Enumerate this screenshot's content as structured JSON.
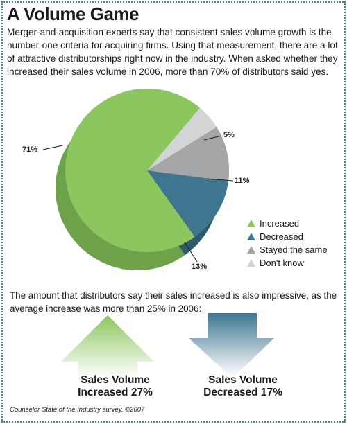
{
  "header": {
    "title": "A Volume Game",
    "intro": "Merger-and-acquisition experts say that consistent sales volume growth is the number-one criteria for acquiring firms. Using that measurement, there are a lot of attractive distributorships right now in the industry. When asked whether they increased their sales volume in 2006, more than 70% of distributors said yes."
  },
  "chart_data": {
    "type": "pie",
    "categories": [
      "Increased",
      "Decreased",
      "Stayed the same",
      "Don't know"
    ],
    "values": [
      71,
      13,
      11,
      5
    ],
    "labels": [
      "71%",
      "13%",
      "11%",
      "5%"
    ],
    "colors": [
      "#8cc65e",
      "#3e7690",
      "#a5a6a8",
      "#d3d4d6"
    ],
    "side_colors": [
      "#6ea24a",
      "#2d5a6e",
      "#7f8082",
      "#a9aaac"
    ],
    "legend": "right"
  },
  "body2": "The amount that distributors say their sales increased is also impressive, as the average increase was more than 25% in 2006:",
  "arrows": {
    "up": {
      "line1": "Sales Volume",
      "line2": "Increased 27%",
      "color": "#8cc65e"
    },
    "down": {
      "line1": "Sales Volume",
      "line2": "Decreased 17%",
      "color": "#3e7690"
    }
  },
  "source": "Counselor State of the Industry survey. ©2007"
}
